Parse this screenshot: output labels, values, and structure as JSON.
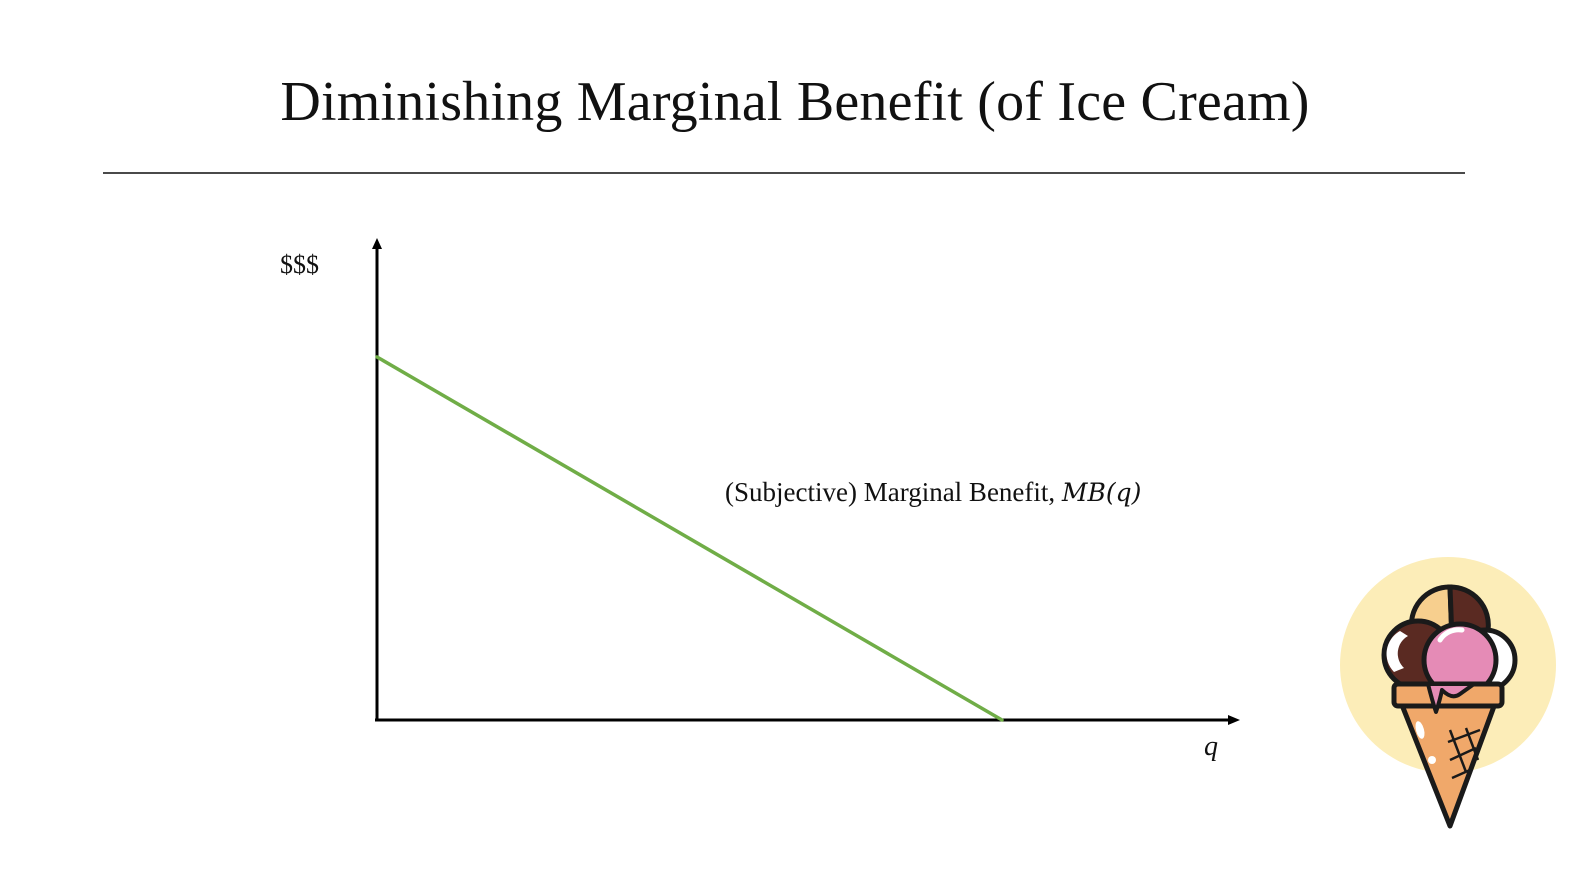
{
  "slide": {
    "title": "Diminishing Marginal Benefit (of Ice Cream)"
  },
  "axes": {
    "y_label": "$$$",
    "x_label": "q"
  },
  "curve": {
    "label_text": "(Subjective) Marginal Benefit, ",
    "label_math": "MB(q)",
    "color": "#70ad47"
  },
  "icons": {
    "illustration": "ice-cream-cone-icon"
  },
  "colors": {
    "axis": "#000000",
    "rule": "#4a4a4a",
    "icon_circle": "#fcedb8"
  }
}
